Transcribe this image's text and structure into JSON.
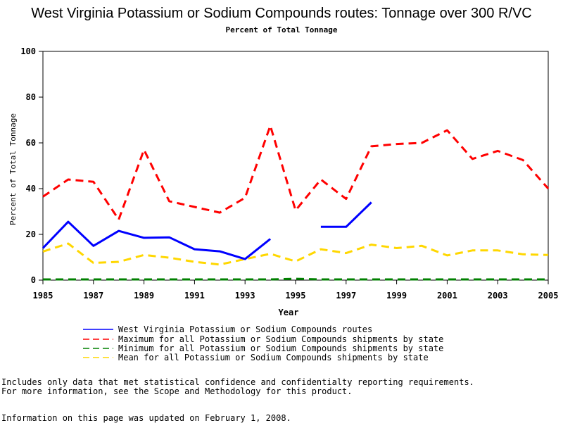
{
  "title": "West Virginia Potassium or Sodium Compounds routes: Tonnage over 300 R/VC",
  "subtitle": "Percent of Total Tonnage",
  "chart_data": {
    "type": "line",
    "xlabel": "Year",
    "ylabel": "Percent of Total Tonnage",
    "xlim": [
      1985,
      2005
    ],
    "ylim": [
      0,
      100
    ],
    "x_ticks": [
      1985,
      1987,
      1989,
      1991,
      1993,
      1995,
      1997,
      1999,
      2001,
      2003,
      2005
    ],
    "y_ticks": [
      0,
      20,
      40,
      60,
      80,
      100
    ],
    "grid": false,
    "legend_position": "bottom",
    "series": [
      {
        "name": "West Virginia Potassium or Sodium Compounds routes",
        "color": "#0000ff",
        "style": "solid",
        "points": [
          [
            1985,
            14
          ],
          [
            1986,
            25.5
          ],
          [
            1987,
            15
          ],
          [
            1988,
            21.5
          ],
          [
            1989,
            18.5
          ],
          [
            1990,
            18.7
          ],
          [
            1991,
            13.5
          ],
          [
            1992,
            12.6
          ],
          [
            1993,
            9.2
          ],
          [
            1994,
            18
          ],
          [
            1995,
            null
          ],
          [
            1996,
            23.3
          ],
          [
            1997,
            23.3
          ],
          [
            1998,
            34
          ]
        ]
      },
      {
        "name": "Maximum for all Potassium or Sodium Compounds shipments by state",
        "color": "#ff0000",
        "style": "dashed",
        "points": [
          [
            1985,
            36.5
          ],
          [
            1986,
            44
          ],
          [
            1987,
            43
          ],
          [
            1988,
            26.5
          ],
          [
            1989,
            57
          ],
          [
            1990,
            34.5
          ],
          [
            1991,
            32
          ],
          [
            1992,
            29.5
          ],
          [
            1993,
            36
          ],
          [
            1994,
            67.5
          ],
          [
            1995,
            30.5
          ],
          [
            1996,
            44
          ],
          [
            1997,
            35.5
          ],
          [
            1998,
            58.5
          ],
          [
            1999,
            59.5
          ],
          [
            2000,
            60
          ],
          [
            2001,
            65.5
          ],
          [
            2002,
            53
          ],
          [
            2003,
            56.5
          ],
          [
            2004,
            52.5
          ],
          [
            2005,
            40
          ]
        ]
      },
      {
        "name": "Minimum for all Potassium or Sodium Compounds shipments by state",
        "color": "#008000",
        "style": "dashed",
        "points": [
          [
            1985,
            0.3
          ],
          [
            1986,
            0.3
          ],
          [
            1987,
            0.3
          ],
          [
            1988,
            0.3
          ],
          [
            1989,
            0.3
          ],
          [
            1990,
            0.3
          ],
          [
            1991,
            0.3
          ],
          [
            1992,
            0.3
          ],
          [
            1993,
            0.3
          ],
          [
            1994,
            0.3
          ],
          [
            1995,
            0.6
          ],
          [
            1996,
            0.3
          ],
          [
            1997,
            0.3
          ],
          [
            1998,
            0.3
          ],
          [
            1999,
            0.3
          ],
          [
            2000,
            0.3
          ],
          [
            2001,
            0.3
          ],
          [
            2002,
            0.3
          ],
          [
            2003,
            0.3
          ],
          [
            2004,
            0.3
          ],
          [
            2005,
            0.3
          ]
        ]
      },
      {
        "name": "Mean for all Potassium or Sodium Compounds shipments by state",
        "color": "#ffd700",
        "style": "dashed",
        "points": [
          [
            1985,
            12.5
          ],
          [
            1986,
            16
          ],
          [
            1987,
            7.5
          ],
          [
            1988,
            8
          ],
          [
            1989,
            11
          ],
          [
            1990,
            9.8
          ],
          [
            1991,
            8
          ],
          [
            1992,
            6.8
          ],
          [
            1993,
            9.2
          ],
          [
            1994,
            11.5
          ],
          [
            1995,
            8.2
          ],
          [
            1996,
            13.5
          ],
          [
            1997,
            11.8
          ],
          [
            1998,
            15.5
          ],
          [
            1999,
            14
          ],
          [
            2000,
            15
          ],
          [
            2001,
            10.8
          ],
          [
            2002,
            13
          ],
          [
            2003,
            13
          ],
          [
            2004,
            11.3
          ],
          [
            2005,
            11
          ]
        ]
      }
    ]
  },
  "footnote_lines": [
    "Includes only data that met statistical confidence and confidentialty reporting requirements.",
    "For more information, see the Scope and Methodology for this product."
  ],
  "update_note": "Information on this page was updated on February 1, 2008."
}
